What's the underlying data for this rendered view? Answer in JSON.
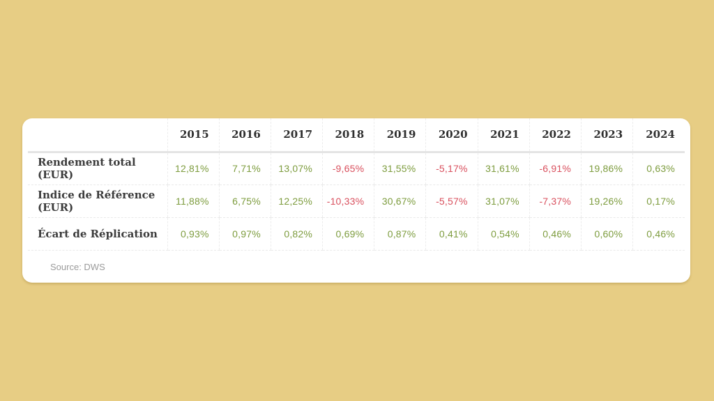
{
  "page": {
    "background_color": "#e7cd84"
  },
  "card": {
    "background_color": "#ffffff",
    "source": "Source: DWS"
  },
  "table": {
    "columns": [
      "2015",
      "2016",
      "2017",
      "2018",
      "2019",
      "2020",
      "2021",
      "2022",
      "2023",
      "2024"
    ],
    "rows": [
      {
        "label": "Rendement total (EUR)",
        "values": [
          "12,81%",
          "7,71%",
          "13,07%",
          "-9,65%",
          "31,55%",
          "-5,17%",
          "31,61%",
          "-6,91%",
          "19,86%",
          "0,63%"
        ]
      },
      {
        "label": "Indice de Référence (EUR)",
        "values": [
          "11,88%",
          "6,75%",
          "12,25%",
          "-10,33%",
          "30,67%",
          "-5,57%",
          "31,07%",
          "-7,37%",
          "19,26%",
          "0,17%"
        ]
      },
      {
        "label": "Écart de Réplication",
        "values": [
          "0,93%",
          "0,97%",
          "0,82%",
          "0,69%",
          "0,87%",
          "0,41%",
          "0,54%",
          "0,46%",
          "0,60%",
          "0,46%"
        ]
      }
    ],
    "positive_color": "#7d9c3e",
    "negative_color": "#d9505e",
    "header_text_color": "#2f2f2f",
    "label_text_color": "#3c3c3c"
  },
  "chart_data": {
    "type": "table",
    "title": "",
    "categories": [
      "2015",
      "2016",
      "2017",
      "2018",
      "2019",
      "2020",
      "2021",
      "2022",
      "2023",
      "2024"
    ],
    "series": [
      {
        "name": "Rendement total (EUR)",
        "values": [
          12.81,
          7.71,
          13.07,
          -9.65,
          31.55,
          -5.17,
          31.61,
          -6.91,
          19.86,
          0.63
        ]
      },
      {
        "name": "Indice de Référence (EUR)",
        "values": [
          11.88,
          6.75,
          12.25,
          -10.33,
          30.67,
          -5.57,
          31.07,
          -7.37,
          19.26,
          0.17
        ]
      },
      {
        "name": "Écart de Réplication",
        "values": [
          0.93,
          0.97,
          0.82,
          0.69,
          0.87,
          0.41,
          0.54,
          0.46,
          0.6,
          0.46
        ]
      }
    ],
    "value_unit": "%",
    "decimal_separator": ",",
    "source": "Source: DWS",
    "legend_position": "none",
    "grid": "dashed-light"
  }
}
